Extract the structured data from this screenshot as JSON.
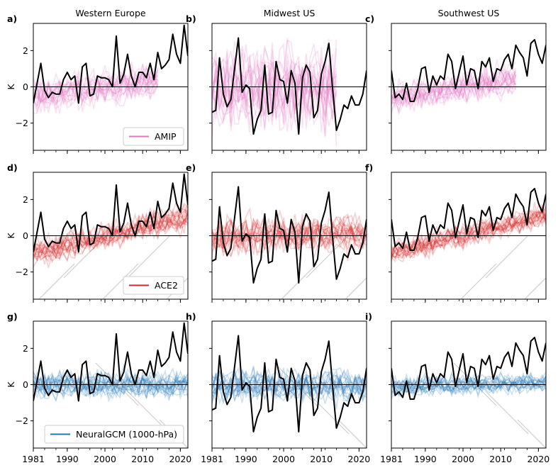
{
  "chart_data": {
    "type": "line",
    "x_range": [
      1981,
      2022
    ],
    "ylim": [
      -3.5,
      3.5
    ],
    "y_ticks": [
      -2,
      0,
      2
    ],
    "y_tick_labels": [
      "−2",
      "0",
      "2"
    ],
    "x_ticks": [
      1981,
      1990,
      2000,
      2010,
      2020
    ],
    "x_tick_labels": [
      "1981",
      "1990",
      "2000",
      "2010",
      "2020"
    ],
    "ylabel": "K",
    "column_titles": [
      "Western Europe",
      "Midwest US",
      "Southwest US"
    ],
    "panel_letters": [
      "a)",
      "b)",
      "c)",
      "d)",
      "e)",
      "f)",
      "g)",
      "h)",
      "i)"
    ],
    "legend_labels": [
      "AMIP",
      "ACE2",
      "NeuralGCM (1000-hPa)"
    ],
    "colors": {
      "observed": "#000000",
      "AMIP": "#e377c2",
      "ACE2": "#d62728",
      "NeuralGCM": "#1f77b4",
      "zero_line": "#000000",
      "hatch": "#bbbbbb"
    },
    "ensemble_end_year": {
      "AMIP": 2014,
      "ACE2": 2022,
      "NeuralGCM": 2022
    },
    "ensemble_members": 20,
    "observed": {
      "Western Europe": [
        -0.9,
        0.2,
        1.3,
        -0.2,
        -0.6,
        -0.3,
        -0.4,
        -0.4,
        0.4,
        0.8,
        0.4,
        0.6,
        -0.9,
        1.1,
        1.3,
        -0.5,
        -0.4,
        0.6,
        0.5,
        0.5,
        0.4,
        0.0,
        2.8,
        0.2,
        0.7,
        1.8,
        0.6,
        0.0,
        0.8,
        0.8,
        0.5,
        1.3,
        0.4,
        1.9,
        1.0,
        1.2,
        1.5,
        2.9,
        1.8,
        1.3,
        3.4,
        1.7
      ],
      "Midwest US": [
        -1.4,
        -1.3,
        1.6,
        -0.4,
        -1.1,
        -0.7,
        1.0,
        2.7,
        -0.3,
        0.1,
        -0.1,
        -2.6,
        -1.8,
        -1.3,
        1.2,
        -1.5,
        -1.4,
        1.4,
        0.4,
        0.3,
        -0.9,
        0.9,
        0.2,
        -2.6,
        0.5,
        1.2,
        0.8,
        -1.7,
        -1.3,
        0.7,
        1.4,
        2.4,
        -0.1,
        -2.4,
        -1.8,
        -1.0,
        -1.2,
        -0.5,
        -1.0,
        -1.0,
        -0.4,
        0.9
      ],
      "Southwest US": [
        0.9,
        -0.6,
        -0.4,
        -0.7,
        0.2,
        -0.8,
        -0.8,
        -0.1,
        1.0,
        1.1,
        -0.3,
        0.6,
        0.1,
        0.6,
        0.4,
        1.8,
        1.4,
        -0.1,
        0.8,
        1.7,
        0.1,
        1.0,
        0.9,
        -0.1,
        1.4,
        1.1,
        1.6,
        0.3,
        1.0,
        0.9,
        1.5,
        1.8,
        1.0,
        2.3,
        1.9,
        1.6,
        0.6,
        2.4,
        2.6,
        1.8,
        1.3,
        2.3
      ]
    },
    "ensemble_mean_trend_K_per_decade": {
      "AMIP": {
        "Western Europe": 0.25,
        "Midwest US": 0.0,
        "Southwest US": 0.3
      },
      "ACE2": {
        "Western Europe": 0.5,
        "Midwest US": 0.05,
        "Southwest US": 0.5
      },
      "NeuralGCM": {
        "Western Europe": 0.0,
        "Midwest US": 0.0,
        "Southwest US": 0.05
      }
    },
    "ensemble_spread_K": {
      "AMIP": {
        "Western Europe": 0.9,
        "Midwest US": 2.2,
        "Southwest US": 0.8
      },
      "ACE2": {
        "Western Europe": 0.7,
        "Midwest US": 0.9,
        "Southwest US": 0.6
      },
      "NeuralGCM": {
        "Western Europe": 0.7,
        "Midwest US": 0.8,
        "Southwest US": 0.5
      }
    }
  }
}
